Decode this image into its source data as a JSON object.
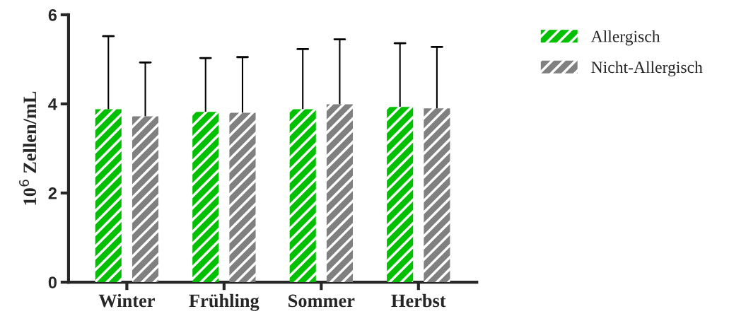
{
  "chart_data": {
    "type": "bar",
    "ylabel": "10$^{6}$ Zellen/mL",
    "categories": [
      "Winter",
      "Frühling",
      "Sommer",
      "Herbst"
    ],
    "series": [
      {
        "name": "Allergisch",
        "color": "#00c000",
        "values": [
          3.88,
          3.82,
          3.88,
          3.93
        ],
        "errors": [
          [
            3.88,
            5.52
          ],
          [
            3.82,
            5.03
          ],
          [
            3.88,
            5.23
          ],
          [
            3.93,
            5.36
          ]
        ]
      },
      {
        "name": "Nicht-Allergisch",
        "color": "#808080",
        "values": [
          3.72,
          3.8,
          3.99,
          3.9
        ],
        "errors": [
          [
            3.72,
            4.93
          ],
          [
            3.8,
            5.05
          ],
          [
            3.99,
            5.45
          ],
          [
            3.9,
            5.28
          ]
        ]
      }
    ],
    "ylim": [
      0,
      6
    ],
    "yticks": [
      0,
      2,
      4,
      6
    ],
    "grid": false,
    "legend": "top right"
  }
}
